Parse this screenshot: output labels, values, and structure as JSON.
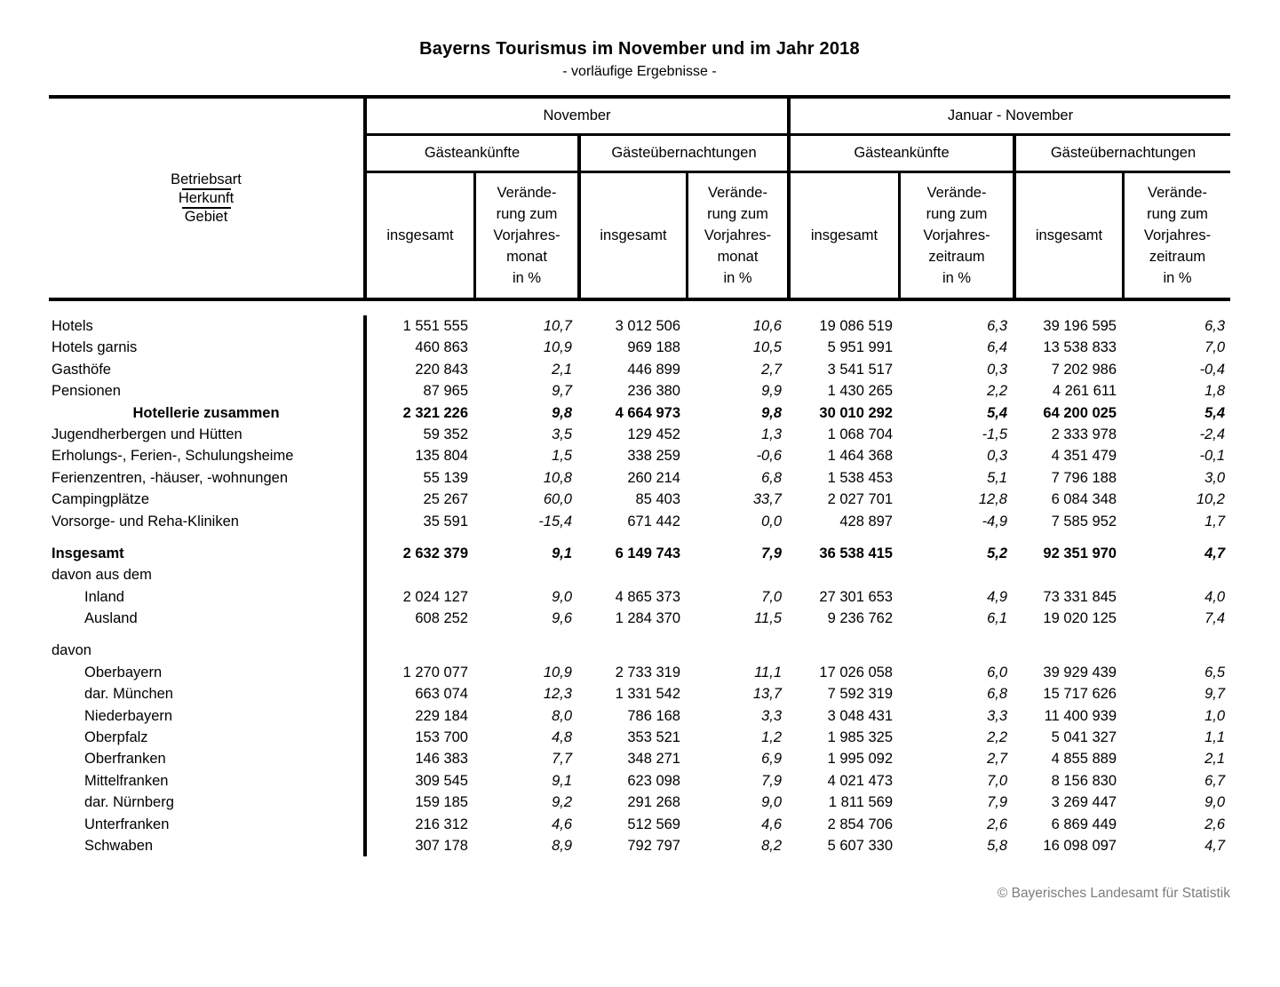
{
  "title": "Bayerns Tourismus im November und im Jahr 2018",
  "subtitle": "- vorläufige Ergebnisse -",
  "stub_header": {
    "line1": "Betriebsart",
    "line2": "Herkunft",
    "line3": "Gebiet"
  },
  "columns": {
    "period_november": "November",
    "period_jan_nov": "Januar - November",
    "arrivals": "Gästeankünfte",
    "overnights": "Gästeübernachtungen",
    "total": "insgesamt",
    "change_month": "Verände-\nrung zum\nVorjahres-\nmonat\nin %",
    "change_period": "Verände-\nrung zum\nVorjahres-\nzeitraum\nin %"
  },
  "rows": [
    {
      "label": "Hotels",
      "indent": 0,
      "bold": false,
      "values": [
        "1 551 555",
        "10,7",
        "3 012 506",
        "10,6",
        "19 086 519",
        "6,3",
        "39 196 595",
        "6,3"
      ]
    },
    {
      "label": "Hotels garnis",
      "indent": 0,
      "bold": false,
      "values": [
        "460 863",
        "10,9",
        "969 188",
        "10,5",
        "5 951 991",
        "6,4",
        "13 538 833",
        "7,0"
      ]
    },
    {
      "label": "Gasthöfe",
      "indent": 0,
      "bold": false,
      "values": [
        "220 843",
        "2,1",
        "446 899",
        "2,7",
        "3 541 517",
        "0,3",
        "7 202 986",
        "-0,4"
      ]
    },
    {
      "label": "Pensionen",
      "indent": 0,
      "bold": false,
      "values": [
        "87 965",
        "9,7",
        "236 380",
        "9,9",
        "1 430 265",
        "2,2",
        "4 261 611",
        "1,8"
      ]
    },
    {
      "label": "Hotellerie zusammen",
      "indent": 0,
      "center": true,
      "bold": true,
      "values": [
        "2 321 226",
        "9,8",
        "4 664 973",
        "9,8",
        "30 010 292",
        "5,4",
        "64 200 025",
        "5,4"
      ]
    },
    {
      "label": "Jugendherbergen und Hütten",
      "indent": 0,
      "bold": false,
      "values": [
        "59 352",
        "3,5",
        "129 452",
        "1,3",
        "1 068 704",
        "-1,5",
        "2 333 978",
        "-2,4"
      ]
    },
    {
      "label": "Erholungs-, Ferien-, Schulungsheime",
      "indent": 0,
      "bold": false,
      "values": [
        "135 804",
        "1,5",
        "338 259",
        "-0,6",
        "1 464 368",
        "0,3",
        "4 351 479",
        "-0,1"
      ]
    },
    {
      "label": "Ferienzentren, -häuser, -wohnungen",
      "indent": 0,
      "bold": false,
      "values": [
        "55 139",
        "10,8",
        "260 214",
        "6,8",
        "1 538 453",
        "5,1",
        "7 796 188",
        "3,0"
      ]
    },
    {
      "label": "Campingplätze",
      "indent": 0,
      "bold": false,
      "values": [
        "25 267",
        "60,0",
        "85 403",
        "33,7",
        "2 027 701",
        "12,8",
        "6 084 348",
        "10,2"
      ]
    },
    {
      "label": "Vorsorge- und Reha-Kliniken",
      "indent": 0,
      "bold": false,
      "values": [
        "35 591",
        "-15,4",
        "671 442",
        "0,0",
        "428 897",
        "-4,9",
        "7 585 952",
        "1,7"
      ]
    },
    {
      "label": "Insgesamt",
      "indent": 0,
      "bold": true,
      "gap_before": true,
      "values": [
        "2 632 379",
        "9,1",
        "6 149 743",
        "7,9",
        "36 538 415",
        "5,2",
        "92 351 970",
        "4,7"
      ]
    },
    {
      "label": "davon aus dem",
      "indent": 0,
      "bold": false,
      "values": null
    },
    {
      "label": "Inland",
      "indent": 1,
      "bold": false,
      "values": [
        "2 024 127",
        "9,0",
        "4 865 373",
        "7,0",
        "27 301 653",
        "4,9",
        "73 331 845",
        "4,0"
      ]
    },
    {
      "label": "Ausland",
      "indent": 1,
      "bold": false,
      "values": [
        "608 252",
        "9,6",
        "1 284 370",
        "11,5",
        "9 236 762",
        "6,1",
        "19 020 125",
        "7,4"
      ]
    },
    {
      "label": "davon",
      "indent": 0,
      "bold": false,
      "gap_before": true,
      "values": null
    },
    {
      "label": "Oberbayern",
      "indent": 1,
      "bold": false,
      "values": [
        "1 270 077",
        "10,9",
        "2 733 319",
        "11,1",
        "17 026 058",
        "6,0",
        "39 929 439",
        "6,5"
      ]
    },
    {
      "label": "dar. München",
      "indent": 1,
      "bold": false,
      "values": [
        "663 074",
        "12,3",
        "1 331 542",
        "13,7",
        "7 592 319",
        "6,8",
        "15 717 626",
        "9,7"
      ]
    },
    {
      "label": "Niederbayern",
      "indent": 1,
      "bold": false,
      "values": [
        "229 184",
        "8,0",
        "786 168",
        "3,3",
        "3 048 431",
        "3,3",
        "11 400 939",
        "1,0"
      ]
    },
    {
      "label": "Oberpfalz",
      "indent": 1,
      "bold": false,
      "values": [
        "153 700",
        "4,8",
        "353 521",
        "1,2",
        "1 985 325",
        "2,2",
        "5 041 327",
        "1,1"
      ]
    },
    {
      "label": "Oberfranken",
      "indent": 1,
      "bold": false,
      "values": [
        "146 383",
        "7,7",
        "348 271",
        "6,9",
        "1 995 092",
        "2,7",
        "4 855 889",
        "2,1"
      ]
    },
    {
      "label": "Mittelfranken",
      "indent": 1,
      "bold": false,
      "values": [
        "309 545",
        "9,1",
        "623 098",
        "7,9",
        "4 021 473",
        "7,0",
        "8 156 830",
        "6,7"
      ]
    },
    {
      "label": "dar. Nürnberg",
      "indent": 1,
      "bold": false,
      "values": [
        "159 185",
        "9,2",
        "291 268",
        "9,0",
        "1 811 569",
        "7,9",
        "3 269 447",
        "9,0"
      ]
    },
    {
      "label": "Unterfranken",
      "indent": 1,
      "bold": false,
      "values": [
        "216 312",
        "4,6",
        "512 569",
        "4,6",
        "2 854 706",
        "2,6",
        "6 869 449",
        "2,6"
      ]
    },
    {
      "label": "Schwaben",
      "indent": 1,
      "bold": false,
      "values": [
        "307 178",
        "8,9",
        "792 797",
        "8,2",
        "5 607 330",
        "5,8",
        "16 098 097",
        "4,7"
      ]
    }
  ],
  "footer": "© Bayerisches Landesamt für Statistik"
}
